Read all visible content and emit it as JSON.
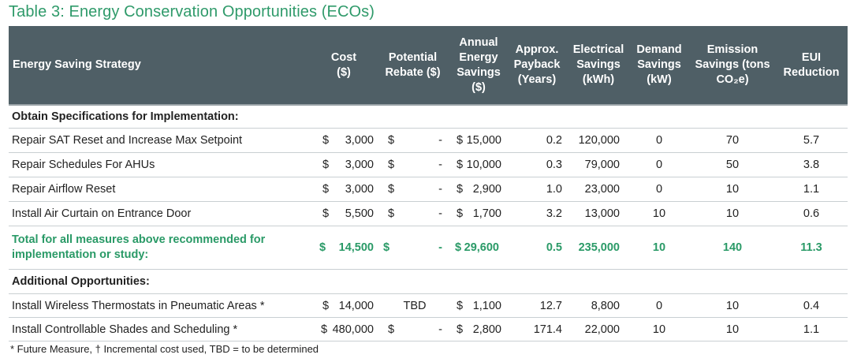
{
  "title": "Table 3: Energy Conservation Opportunities (ECOs)",
  "headers": {
    "strategy": "Energy Saving Strategy",
    "cost": [
      "Cost",
      "($)"
    ],
    "rebate": [
      "Potential",
      "Rebate ($)"
    ],
    "energy": [
      "Annual",
      "Energy",
      "Savings",
      "($)"
    ],
    "payback": [
      "Approx.",
      "Payback",
      "(Years)"
    ],
    "elec": [
      "Electrical",
      "Savings",
      "(kWh)"
    ],
    "demand": [
      "Demand",
      "Savings",
      "(kW)"
    ],
    "emission": [
      "Emission",
      "Savings (tons",
      "CO₂e)"
    ],
    "eui": [
      "EUI",
      "Reduction"
    ]
  },
  "sections": [
    {
      "label": "Obtain Specifications for Implementation:"
    },
    {
      "label": "Additional Opportunities:"
    }
  ],
  "rows": [
    {
      "strategy": "Repair SAT Reset and Increase Max Setpoint",
      "cost_sym": "$",
      "cost": "3,000",
      "rebate_sym": "$",
      "rebate": "-",
      "energy_sym": "$",
      "energy": "15,000",
      "payback": "0.2",
      "elec": "120,000",
      "demand": "0",
      "emission": "70",
      "eui": "5.7"
    },
    {
      "strategy": "Repair Schedules For AHUs",
      "cost_sym": "$",
      "cost": "3,000",
      "rebate_sym": "$",
      "rebate": "-",
      "energy_sym": "$",
      "energy": "10,000",
      "payback": "0.3",
      "elec": "79,000",
      "demand": "0",
      "emission": "50",
      "eui": "3.8"
    },
    {
      "strategy": "Repair Airflow Reset",
      "cost_sym": "$",
      "cost": "3,000",
      "rebate_sym": "$",
      "rebate": "-",
      "energy_sym": "$",
      "energy": "2,900",
      "payback": "1.0",
      "elec": "23,000",
      "demand": "0",
      "emission": "10",
      "eui": "1.1"
    },
    {
      "strategy": "Install Air Curtain on Entrance Door",
      "cost_sym": "$",
      "cost": "5,500",
      "rebate_sym": "$",
      "rebate": "-",
      "energy_sym": "$",
      "energy": "1,700",
      "payback": "3.2",
      "elec": "13,000",
      "demand": "10",
      "emission": "10",
      "eui": "0.6"
    }
  ],
  "total": {
    "label": "Total for all measures above recommended for implementation or study:",
    "cost_sym": "$",
    "cost": "14,500",
    "rebate_sym": "$",
    "rebate": "-",
    "energy_sym": "$",
    "energy": "29,600",
    "payback": "0.5",
    "elec": "235,000",
    "demand": "10",
    "emission": "140",
    "eui": "11.3"
  },
  "additional": [
    {
      "strategy": "Install Wireless Thermostats in Pneumatic Areas *",
      "cost_sym": "$",
      "cost": "14,000",
      "rebate": "TBD",
      "energy_sym": "$",
      "energy": "1,100",
      "payback": "12.7",
      "elec": "8,800",
      "demand": "0",
      "emission": "10",
      "eui": "0.4"
    },
    {
      "strategy": "Install Controllable Shades and Scheduling *",
      "cost_sym": "$",
      "cost": "480,000",
      "rebate_sym": "$",
      "rebate": "-",
      "energy_sym": "$",
      "energy": "2,800",
      "payback": "171.4",
      "elec": "22,000",
      "demand": "10",
      "emission": "10",
      "eui": "1.1"
    }
  ],
  "footnote": "* Future Measure, † Incremental cost used, TBD = to be determined"
}
